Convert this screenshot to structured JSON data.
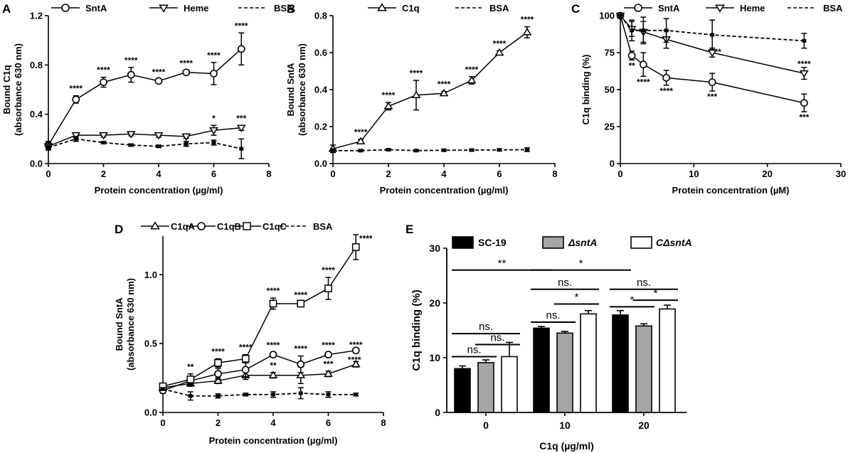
{
  "chart_data": [
    {
      "id": "A",
      "type": "line",
      "panel_label": "A",
      "xlabel": "Protein concentration (µg/ml)",
      "ylabel": "Bound C1q",
      "ylabel2": "(absorbance 630 nm)",
      "xlim": [
        0,
        8
      ],
      "ylim": [
        0,
        1.2
      ],
      "xticks": [
        "0",
        "2",
        "4",
        "6",
        "8"
      ],
      "yticks": [
        "0.0",
        "0.4",
        "0.8",
        "1.2"
      ],
      "legend": "top",
      "series": [
        {
          "name": "SntA",
          "marker": "circle",
          "dashed": false,
          "x": [
            0,
            1,
            2,
            3,
            4,
            5,
            6,
            7
          ],
          "y": [
            0.15,
            0.52,
            0.66,
            0.72,
            0.67,
            0.74,
            0.73,
            0.93
          ],
          "err": [
            0.03,
            0.03,
            0.04,
            0.06,
            0.015,
            0.015,
            0.09,
            0.13
          ],
          "labels": [
            "",
            "****",
            "****",
            "****",
            "****",
            "****",
            "****",
            "****"
          ]
        },
        {
          "name": "Heme",
          "marker": "triangle-down",
          "dashed": false,
          "x": [
            0,
            1,
            2,
            3,
            4,
            5,
            6,
            7
          ],
          "y": [
            0.14,
            0.23,
            0.23,
            0.24,
            0.23,
            0.22,
            0.27,
            0.29
          ],
          "err": [
            0.03,
            0.02,
            0.015,
            0.015,
            0.015,
            0.015,
            0.04,
            0.02
          ],
          "labels": [
            "",
            "",
            "",
            "",
            "",
            "",
            "*",
            "***"
          ]
        },
        {
          "name": "BSA",
          "marker": "none",
          "dashed": true,
          "x": [
            0,
            1,
            2,
            3,
            4,
            5,
            6,
            7
          ],
          "y": [
            0.13,
            0.2,
            0.17,
            0.15,
            0.14,
            0.16,
            0.17,
            0.12
          ],
          "err": [
            0.02,
            0.02,
            0.01,
            0.01,
            0.01,
            0.02,
            0.02,
            0.08
          ],
          "labels": [
            "",
            "",
            "",
            "",
            "",
            "",
            "",
            ""
          ]
        }
      ]
    },
    {
      "id": "B",
      "type": "line",
      "panel_label": "B",
      "xlabel": "Protein concentration (µg/ml)",
      "ylabel": "Bound SntA",
      "ylabel2": "(absorbance 630 nm)",
      "xlim": [
        0,
        8
      ],
      "ylim": [
        0,
        0.8
      ],
      "xticks": [
        "0",
        "2",
        "4",
        "6",
        "8"
      ],
      "yticks": [
        "0.0",
        "0.2",
        "0.4",
        "0.6",
        "0.8"
      ],
      "legend": "top",
      "series": [
        {
          "name": "C1q",
          "marker": "triangle-up",
          "dashed": false,
          "x": [
            0,
            1,
            2,
            3,
            4,
            5,
            6,
            7
          ],
          "y": [
            0.08,
            0.12,
            0.31,
            0.37,
            0.38,
            0.45,
            0.6,
            0.71
          ],
          "err": [
            0.02,
            0.01,
            0.02,
            0.08,
            0.01,
            0.02,
            0.01,
            0.03
          ],
          "labels": [
            "",
            "****",
            "****",
            "****",
            "****",
            "****",
            "****",
            "****"
          ]
        },
        {
          "name": "BSA",
          "marker": "none",
          "dashed": true,
          "x": [
            0,
            1,
            2,
            3,
            4,
            5,
            6,
            7
          ],
          "y": [
            0.07,
            0.07,
            0.075,
            0.07,
            0.072,
            0.073,
            0.074,
            0.075
          ],
          "err": [
            0.01,
            0.005,
            0.005,
            0.005,
            0.005,
            0.005,
            0.005,
            0.01
          ],
          "labels": [
            "",
            "",
            "",
            "",
            "",
            "",
            "",
            ""
          ]
        }
      ]
    },
    {
      "id": "C",
      "type": "line",
      "panel_label": "C",
      "xlabel": "Protein concentration (µM)",
      "ylabel": "C1q binding (%)",
      "ylabel2": "",
      "xlim": [
        0,
        30
      ],
      "ylim": [
        0,
        100
      ],
      "xticks": [
        "0",
        "10",
        "20",
        "30"
      ],
      "yticks": [
        "0",
        "25",
        "50",
        "75",
        "100"
      ],
      "legend": "top",
      "series": [
        {
          "name": "SntA",
          "marker": "circle",
          "dashed": false,
          "x": [
            0,
            1.56,
            3.13,
            6.25,
            12.5,
            25
          ],
          "y": [
            100,
            73,
            67,
            58,
            55,
            41
          ],
          "err": [
            0,
            3,
            8,
            5,
            6,
            6
          ],
          "labels": [
            "",
            "**",
            "****",
            "****",
            "***",
            "***"
          ]
        },
        {
          "name": "Heme",
          "marker": "triangle-down",
          "dashed": false,
          "x": [
            0,
            1.56,
            3.13,
            6.25,
            12.5,
            25
          ],
          "y": [
            100,
            91,
            89,
            84,
            75,
            61
          ],
          "err": [
            0,
            5,
            7,
            6,
            3,
            4
          ],
          "labels": [
            "",
            "",
            "",
            "",
            "**",
            "****"
          ]
        },
        {
          "name": "BSA",
          "marker": "none",
          "dashed": true,
          "x": [
            0,
            1.56,
            3.13,
            6.25,
            12.5,
            25
          ],
          "y": [
            100,
            90,
            90,
            90,
            87,
            83
          ],
          "err": [
            0,
            7,
            9,
            8,
            10,
            5
          ],
          "labels": [
            "",
            "",
            "",
            "",
            "",
            ""
          ]
        }
      ]
    },
    {
      "id": "D",
      "type": "line",
      "panel_label": "D",
      "xlabel": "Protein concentration (µg/ml)",
      "ylabel": "Bound SntA",
      "ylabel2": "(absorbance 630 nm)",
      "xlim": [
        0,
        8
      ],
      "ylim": [
        0,
        1.28
      ],
      "xticks": [
        "0",
        "2",
        "4",
        "6",
        "8"
      ],
      "yticks": [
        "0.0",
        "0.5",
        "1.0"
      ],
      "ytick_values": [
        0,
        0.5,
        1.0
      ],
      "legend": "top",
      "series": [
        {
          "name": "C1qA",
          "marker": "triangle-up",
          "dashed": false,
          "x": [
            0,
            1,
            2,
            3,
            4,
            5,
            6,
            7
          ],
          "y": [
            0.18,
            0.21,
            0.23,
            0.27,
            0.27,
            0.27,
            0.28,
            0.35
          ],
          "err": [
            0.02,
            0.02,
            0.02,
            0.03,
            0.02,
            0.06,
            0.02,
            0.02
          ],
          "labels": [
            "",
            "",
            "",
            "",
            "**",
            "",
            "***",
            "****"
          ]
        },
        {
          "name": "C1qB",
          "marker": "circle",
          "dashed": false,
          "x": [
            0,
            1,
            2,
            3,
            4,
            5,
            6,
            7
          ],
          "y": [
            0.16,
            0.23,
            0.28,
            0.31,
            0.42,
            0.35,
            0.42,
            0.45
          ],
          "err": [
            0.02,
            0.03,
            0.04,
            0.05,
            0.015,
            0.06,
            0.015,
            0.015
          ],
          "labels": [
            "",
            "",
            "",
            "",
            "****",
            "****",
            "****",
            "****"
          ]
        },
        {
          "name": "C1qC",
          "marker": "square",
          "dashed": false,
          "x": [
            0,
            1,
            2,
            3,
            4,
            5,
            6,
            7
          ],
          "y": [
            0.19,
            0.24,
            0.36,
            0.39,
            0.79,
            0.79,
            0.9,
            1.2
          ],
          "err": [
            0.02,
            0.04,
            0.03,
            0.03,
            0.04,
            0.01,
            0.08,
            0.09
          ],
          "labels": [
            "",
            "**",
            "****",
            "****",
            "****",
            "****",
            "****",
            "****"
          ]
        },
        {
          "name": "BSA",
          "marker": "none",
          "dashed": true,
          "x": [
            0,
            1,
            2,
            3,
            4,
            5,
            6,
            7
          ],
          "y": [
            0.17,
            0.12,
            0.12,
            0.13,
            0.13,
            0.14,
            0.13,
            0.13
          ],
          "err": [
            0.01,
            0.03,
            0.015,
            0.01,
            0.02,
            0.04,
            0.02,
            0.01
          ],
          "labels": [
            "",
            "",
            "",
            "",
            "",
            "",
            "",
            ""
          ]
        }
      ]
    },
    {
      "id": "E",
      "type": "bar",
      "panel_label": "E",
      "xlabel": "C1q (µg/ml)",
      "ylabel": "C1q binding (%)",
      "ylim": [
        0,
        30
      ],
      "yticks": [
        "0",
        "10",
        "20",
        "30"
      ],
      "categories": [
        "0",
        "10",
        "20"
      ],
      "legend": "top",
      "series": [
        {
          "name": "SC-19",
          "italic": false,
          "fill": "#000000",
          "values": [
            8.0,
            15.4,
            17.8
          ],
          "err": [
            0.5,
            0.3,
            0.8
          ]
        },
        {
          "name": "ΔsntA",
          "italic": true,
          "fill": "#a6a6a6",
          "values": [
            9.1,
            14.5,
            15.8
          ],
          "err": [
            0.5,
            0.3,
            0.4
          ]
        },
        {
          "name": "CΔsntA",
          "italic": true,
          "fill": "#ffffff",
          "values": [
            10.2,
            18.0,
            18.9
          ],
          "err": [
            2.6,
            0.6,
            0.7
          ]
        }
      ],
      "comparisons": [
        {
          "label": "**",
          "from": [
            0,
            0
          ],
          "to": [
            1,
            0
          ],
          "y": 26.0
        },
        {
          "label": "*",
          "from": [
            1,
            0
          ],
          "to": [
            2,
            0
          ],
          "y": 26.0
        },
        {
          "label": "ns.",
          "from": [
            0,
            0
          ],
          "to": [
            0,
            2
          ],
          "y": 14.4
        },
        {
          "label": "ns.",
          "from": [
            0,
            0
          ],
          "to": [
            0,
            1
          ],
          "y": 10.2
        },
        {
          "label": "ns.",
          "from": [
            0,
            1
          ],
          "to": [
            0,
            2
          ],
          "y": 12.4
        },
        {
          "label": "ns.",
          "from": [
            1,
            0
          ],
          "to": [
            1,
            2
          ],
          "y": 22.5
        },
        {
          "label": "ns.",
          "from": [
            1,
            0
          ],
          "to": [
            1,
            1
          ],
          "y": 16.5
        },
        {
          "label": "*",
          "from": [
            1,
            1
          ],
          "to": [
            1,
            2
          ],
          "y": 19.8
        },
        {
          "label": "ns.",
          "from": [
            2,
            0
          ],
          "to": [
            2,
            2
          ],
          "y": 22.5
        },
        {
          "label": "*",
          "from": [
            2,
            0
          ],
          "to": [
            2,
            1
          ],
          "y": 19.3
        },
        {
          "label": "*",
          "from": [
            2,
            1
          ],
          "to": [
            2,
            2
          ],
          "y": 20.5
        }
      ]
    }
  ]
}
